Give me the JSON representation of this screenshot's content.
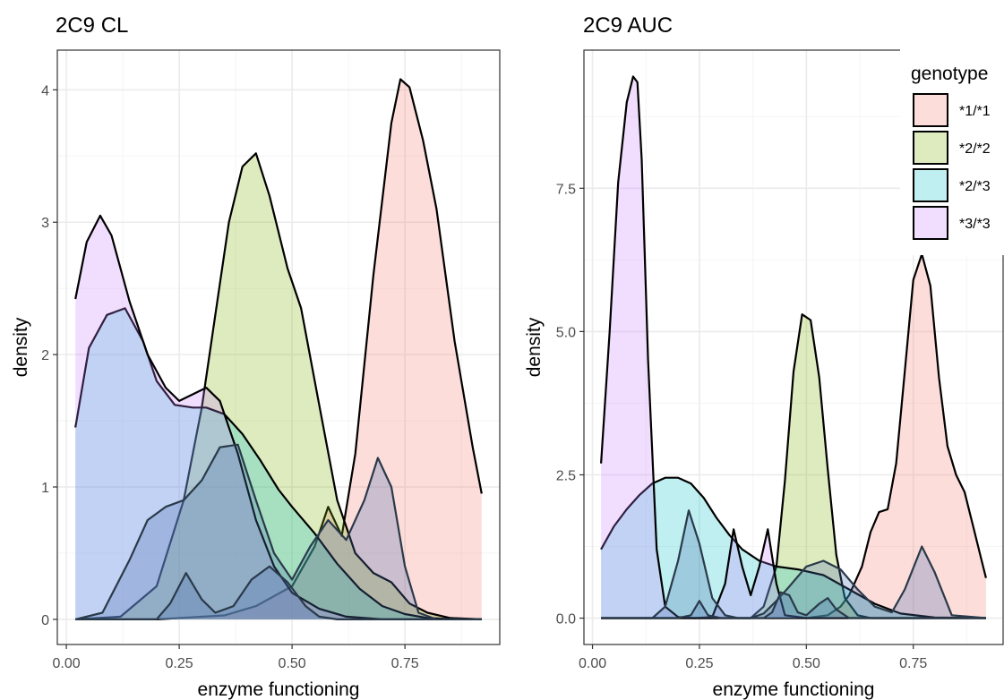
{
  "chart_data": [
    {
      "type": "area",
      "title": "2C9 CL",
      "xlabel": "enzyme functioning",
      "ylabel": "density",
      "xlim": [
        -0.02,
        0.96
      ],
      "ylim": [
        -0.19,
        4.3
      ],
      "x_ticks": [
        0.0,
        0.25,
        0.5,
        0.75
      ],
      "x_tick_labels": [
        "0.00",
        "0.25",
        "0.50",
        "0.75"
      ],
      "y_ticks": [
        0,
        1,
        2,
        3,
        4
      ],
      "y_tick_labels": [
        "0",
        "1",
        "2",
        "3",
        "4"
      ],
      "grid": true,
      "series": [
        {
          "name": "*1/*1",
          "x": [
            0.02,
            0.2,
            0.35,
            0.42,
            0.5,
            0.55,
            0.58,
            0.61,
            0.64,
            0.68,
            0.72,
            0.74,
            0.76,
            0.79,
            0.82,
            0.86,
            0.9,
            0.92
          ],
          "y": [
            0,
            0,
            0.03,
            0.1,
            0.25,
            0.55,
            0.85,
            0.63,
            1.25,
            2.6,
            3.75,
            4.08,
            4.02,
            3.62,
            3.1,
            2.1,
            1.3,
            0.95
          ]
        },
        {
          "name": "*2/*2",
          "x": [
            0.02,
            0.12,
            0.2,
            0.26,
            0.3,
            0.33,
            0.36,
            0.39,
            0.42,
            0.45,
            0.49,
            0.52,
            0.56,
            0.6,
            0.64,
            0.68,
            0.72,
            0.76,
            0.8,
            0.85,
            0.92
          ],
          "y": [
            0,
            0.02,
            0.25,
            0.9,
            1.6,
            2.3,
            3.0,
            3.42,
            3.52,
            3.2,
            2.65,
            2.35,
            1.62,
            0.9,
            0.5,
            0.35,
            0.28,
            0.12,
            0.05,
            0.01,
            0
          ]
        },
        {
          "name": "*2/*3",
          "x": [
            0.02,
            0.05,
            0.09,
            0.13,
            0.17,
            0.2,
            0.24,
            0.28,
            0.31,
            0.35,
            0.39,
            0.43,
            0.47,
            0.5,
            0.55,
            0.6,
            0.65,
            0.7,
            0.75,
            0.8,
            0.86,
            0.92
          ],
          "y": [
            1.45,
            2.05,
            2.3,
            2.35,
            2.1,
            1.8,
            1.62,
            1.6,
            1.6,
            1.55,
            1.4,
            1.2,
            0.98,
            0.85,
            0.65,
            0.42,
            0.23,
            0.1,
            0.04,
            0.01,
            0,
            0
          ]
        },
        {
          "name": "*3/*3",
          "x": [
            0.02,
            0.045,
            0.075,
            0.1,
            0.14,
            0.18,
            0.22,
            0.25,
            0.28,
            0.31,
            0.34,
            0.38,
            0.42,
            0.46,
            0.5,
            0.56,
            0.62,
            0.7,
            0.8,
            0.92
          ],
          "y": [
            2.42,
            2.85,
            3.05,
            2.9,
            2.4,
            2.0,
            1.75,
            1.65,
            1.7,
            1.75,
            1.65,
            1.25,
            0.75,
            0.4,
            0.2,
            0.08,
            0.02,
            0,
            0,
            0
          ]
        },
        {
          "name": "*1/*1",
          "x": [
            0.02,
            0.08,
            0.14,
            0.18,
            0.22,
            0.26,
            0.3,
            0.34,
            0.38,
            0.42,
            0.46,
            0.5,
            0.54,
            0.58,
            0.62,
            0.66,
            0.69,
            0.72,
            0.75,
            0.78,
            0.82,
            0.86,
            0.92
          ],
          "y": [
            0,
            0.05,
            0.45,
            0.75,
            0.85,
            0.9,
            1.05,
            1.3,
            1.32,
            0.9,
            0.5,
            0.3,
            0.55,
            0.75,
            0.6,
            0.9,
            1.22,
            1.0,
            0.4,
            0.05,
            0,
            0,
            0
          ]
        },
        {
          "name": "*2/*2",
          "x": [
            0.02,
            0.2,
            0.23,
            0.265,
            0.3,
            0.33,
            0.37,
            0.41,
            0.45,
            0.49,
            0.53,
            0.56,
            0.6,
            0.92
          ],
          "y": [
            0,
            0,
            0.12,
            0.35,
            0.15,
            0.05,
            0.1,
            0.3,
            0.4,
            0.28,
            0.1,
            0.02,
            0,
            0
          ]
        }
      ]
    },
    {
      "type": "area",
      "title": "2C9 AUC",
      "xlabel": "enzyme functioning",
      "ylabel": "density",
      "xlim": [
        -0.02,
        0.96
      ],
      "ylim": [
        -0.46,
        9.91
      ],
      "x_ticks": [
        0.0,
        0.25,
        0.5,
        0.75
      ],
      "x_tick_labels": [
        "0.00",
        "0.25",
        "0.50",
        "0.75"
      ],
      "y_ticks": [
        0.0,
        2.5,
        5.0,
        7.5
      ],
      "y_tick_labels": [
        "0.0",
        "2.5",
        "5.0",
        "7.5"
      ],
      "grid": true,
      "series": [
        {
          "name": "*1/*1",
          "x": [
            0.02,
            0.5,
            0.55,
            0.58,
            0.6,
            0.63,
            0.65,
            0.67,
            0.69,
            0.71,
            0.73,
            0.75,
            0.77,
            0.79,
            0.81,
            0.83,
            0.85,
            0.87,
            0.89,
            0.91,
            0.92
          ],
          "y": [
            0,
            0,
            0.05,
            0.2,
            0.4,
            0.9,
            1.5,
            1.85,
            1.9,
            2.7,
            4.3,
            5.9,
            6.35,
            5.8,
            4.2,
            3.0,
            2.5,
            2.2,
            1.6,
            1.0,
            0.7
          ]
        },
        {
          "name": "*2/*2",
          "x": [
            0.02,
            0.37,
            0.4,
            0.43,
            0.45,
            0.47,
            0.49,
            0.51,
            0.53,
            0.55,
            0.57,
            0.59,
            0.62,
            0.65,
            0.92
          ],
          "y": [
            0,
            0,
            0.2,
            0.9,
            2.4,
            4.3,
            5.3,
            5.2,
            4.2,
            2.6,
            1.1,
            0.35,
            0.05,
            0,
            0
          ]
        },
        {
          "name": "*2/*3",
          "x": [
            0.02,
            0.05,
            0.08,
            0.11,
            0.14,
            0.17,
            0.2,
            0.23,
            0.26,
            0.29,
            0.32,
            0.35,
            0.39,
            0.43,
            0.48,
            0.54,
            0.6,
            0.66,
            0.72,
            0.8,
            0.92
          ],
          "y": [
            1.2,
            1.6,
            1.9,
            2.15,
            2.35,
            2.45,
            2.45,
            2.35,
            2.1,
            1.75,
            1.45,
            1.2,
            1.0,
            0.9,
            0.85,
            0.75,
            0.5,
            0.25,
            0.08,
            0.01,
            0
          ]
        },
        {
          "name": "*3/*3",
          "x": [
            0.02,
            0.04,
            0.06,
            0.08,
            0.095,
            0.105,
            0.115,
            0.13,
            0.15,
            0.17,
            0.2,
            0.24,
            0.28,
            0.31,
            0.33,
            0.35,
            0.37,
            0.39,
            0.41,
            0.43,
            0.45,
            0.5,
            0.6,
            0.92
          ],
          "y": [
            2.7,
            5.0,
            7.6,
            9.0,
            9.45,
            9.35,
            8.0,
            4.5,
            1.2,
            0.2,
            0.02,
            0,
            0.02,
            0.6,
            1.55,
            0.9,
            0.4,
            0.9,
            1.55,
            0.6,
            0.05,
            0,
            0,
            0
          ]
        },
        {
          "name": "*1/*1",
          "x": [
            0.02,
            0.14,
            0.17,
            0.2,
            0.225,
            0.25,
            0.28,
            0.31,
            0.34,
            0.37,
            0.4,
            0.43,
            0.46,
            0.5,
            0.54,
            0.58,
            0.62,
            0.66,
            0.7,
            0.73,
            0.77,
            0.8,
            0.84,
            0.92
          ],
          "y": [
            0,
            0,
            0.2,
            1.0,
            1.88,
            1.3,
            0.35,
            0.05,
            0,
            0,
            0.08,
            0.3,
            0.55,
            0.9,
            1.0,
            0.85,
            0.5,
            0.2,
            0.1,
            0.5,
            1.25,
            0.8,
            0.05,
            0
          ]
        },
        {
          "name": "*2/*2",
          "x": [
            0.02,
            0.2,
            0.23,
            0.25,
            0.27,
            0.3,
            0.4,
            0.42,
            0.44,
            0.46,
            0.48,
            0.5,
            0.53,
            0.55,
            0.57,
            0.6,
            0.92
          ],
          "y": [
            0,
            0,
            0.05,
            0.3,
            0.05,
            0,
            0,
            0.1,
            0.45,
            0.4,
            0.1,
            0.05,
            0.25,
            0.35,
            0.15,
            0,
            0
          ]
        }
      ]
    }
  ],
  "legend": {
    "title": "genotype",
    "items": [
      {
        "label": "*1/*1",
        "color": "#F8766D"
      },
      {
        "label": "*2/*2",
        "color": "#7CAE00"
      },
      {
        "label": "*2/*3",
        "color": "#00BFC4"
      },
      {
        "label": "*3/*3",
        "color": "#C77CFF"
      }
    ],
    "placement": "top-right"
  },
  "colors": {
    "*1/*1": "#F8766D",
    "*2/*2": "#7CAE00",
    "*2/*3": "#00BFC4",
    "*3/*3": "#C77CFF",
    "extra": "#4D6FB0",
    "panel_border": "#333333",
    "grid_major": "#EBEBEB",
    "grid_minor": "#F5F5F5"
  }
}
